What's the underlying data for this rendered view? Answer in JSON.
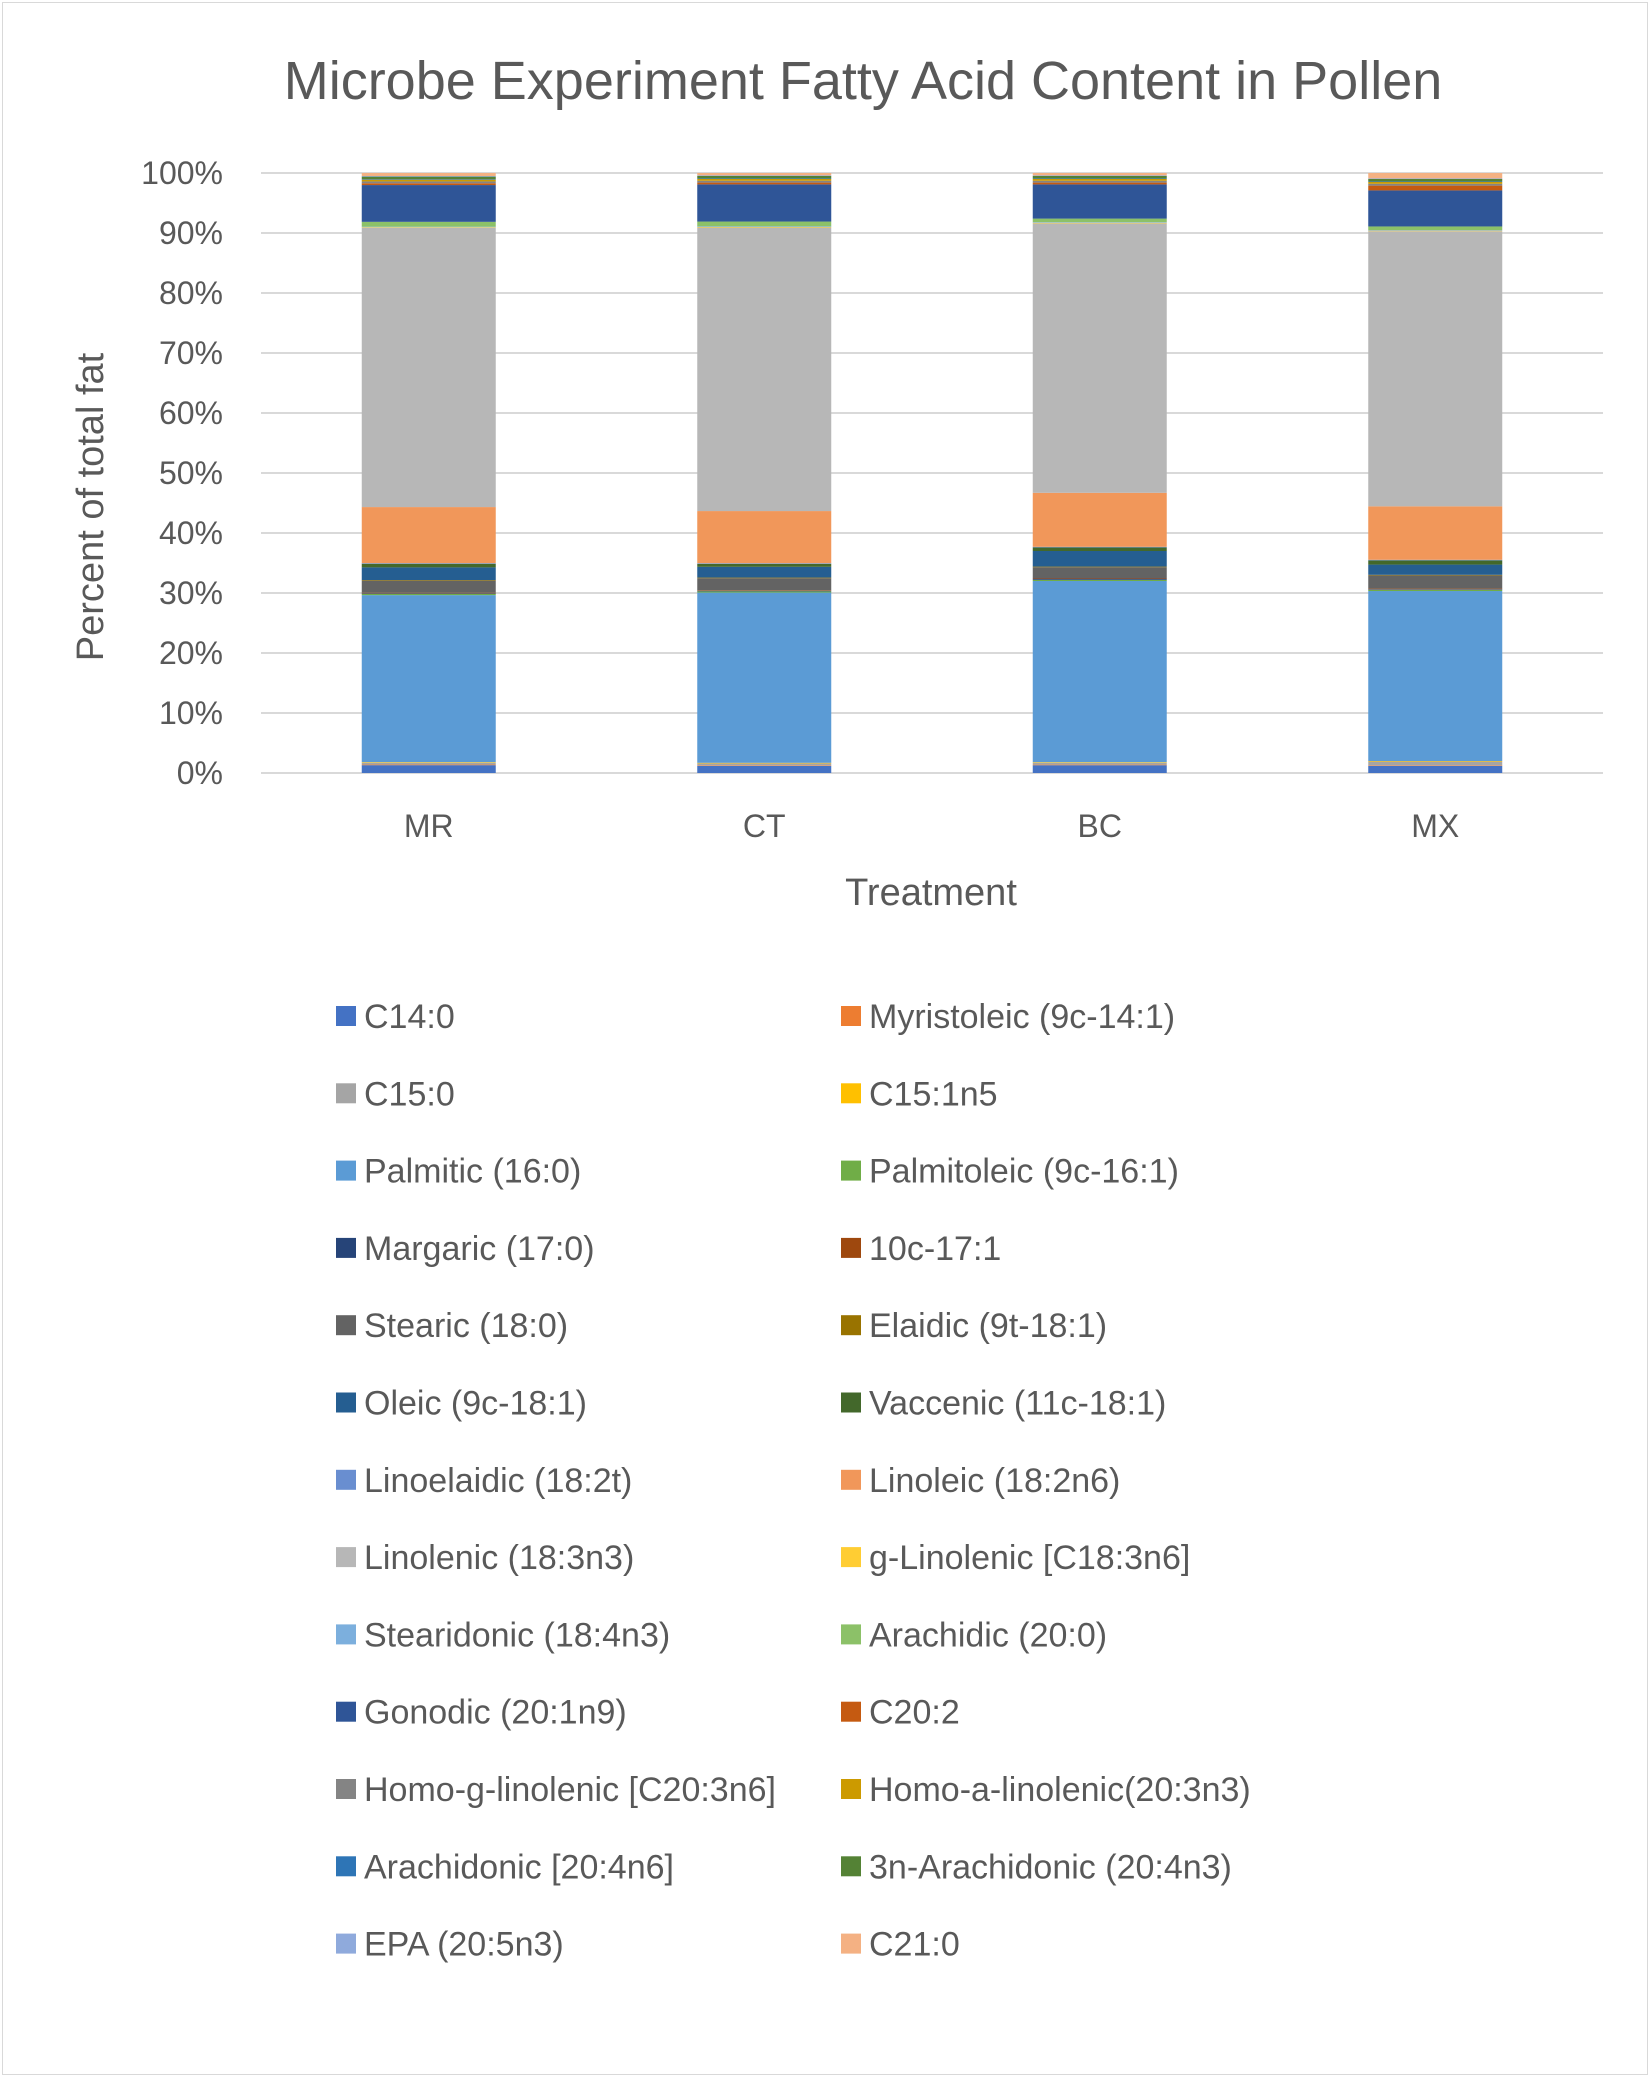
{
  "chart_data": {
    "type": "bar",
    "stacked": true,
    "percent_stacked": true,
    "title": "Microbe Experiment Fatty Acid Content in Pollen",
    "xlabel": "Treatment",
    "ylabel": "Percent of total fat",
    "categories": [
      "MR",
      "CT",
      "BC",
      "MX"
    ],
    "ylim": [
      0,
      100
    ],
    "yticks": [
      "0%",
      "10%",
      "20%",
      "30%",
      "40%",
      "50%",
      "60%",
      "70%",
      "80%",
      "90%",
      "100%"
    ],
    "grid": true,
    "legend_position": "bottom",
    "series": [
      {
        "name": "C14:0",
        "color": "#4472C4",
        "values": [
          1.3,
          1.2,
          1.3,
          1.2
        ]
      },
      {
        "name": "Myristoleic (9c-14:1)",
        "color": "#ED7D31",
        "values": [
          0.1,
          0.1,
          0.1,
          0.1
        ]
      },
      {
        "name": "C15:0",
        "color": "#A5A5A5",
        "values": [
          0.3,
          0.3,
          0.3,
          0.6
        ]
      },
      {
        "name": "C15:1n5",
        "color": "#FFC000",
        "values": [
          0.1,
          0.1,
          0.1,
          0.1
        ]
      },
      {
        "name": "Palmitic (16:0)",
        "color": "#5B9BD5",
        "values": [
          27.7,
          28.4,
          30.2,
          28.3
        ]
      },
      {
        "name": "Palmitoleic (9c-16:1)",
        "color": "#70AD47",
        "values": [
          0.2,
          0.2,
          0.2,
          0.2
        ]
      },
      {
        "name": "Margaric (17:0)",
        "color": "#264478",
        "values": [
          0.1,
          0.1,
          0.2,
          0.1
        ]
      },
      {
        "name": "10c-17:1",
        "color": "#9E480E",
        "values": [
          0.1,
          0.1,
          0.1,
          0.1
        ]
      },
      {
        "name": "Stearic (18:0)",
        "color": "#636363",
        "values": [
          2.0,
          2.0,
          1.8,
          2.2
        ]
      },
      {
        "name": "Elaidic (9t-18:1)",
        "color": "#997300",
        "values": [
          0.1,
          0.1,
          0.1,
          0.1
        ]
      },
      {
        "name": "Oleic (9c-18:1)",
        "color": "#255E91",
        "values": [
          2.1,
          1.8,
          2.6,
          1.7
        ]
      },
      {
        "name": "Vaccenic (11c-18:1)",
        "color": "#43682B",
        "values": [
          0.6,
          0.5,
          0.6,
          0.7
        ]
      },
      {
        "name": "Linoelaidic (18:2t)",
        "color": "#698ED0",
        "values": [
          0.1,
          0.1,
          0.1,
          0.1
        ]
      },
      {
        "name": "Linoleic (18:2n6)",
        "color": "#F1975A",
        "values": [
          9.3,
          8.7,
          9.0,
          8.9
        ]
      },
      {
        "name": "Linolenic (18:3n3)",
        "color": "#B7B7B7",
        "values": [
          46.3,
          47.3,
          44.9,
          45.8
        ]
      },
      {
        "name": "g-Linolenic [C18:3n6]",
        "color": "#FFCD33",
        "values": [
          0.1,
          0.1,
          0.1,
          0.1
        ]
      },
      {
        "name": "Stearidonic (18:4n3)",
        "color": "#7CAFDD",
        "values": [
          0.1,
          0.1,
          0.1,
          0.1
        ]
      },
      {
        "name": "Arachidic (20:0)",
        "color": "#8CC168",
        "values": [
          0.8,
          0.8,
          0.6,
          0.6
        ]
      },
      {
        "name": "Gonodic (20:1n9)",
        "color": "#2F5597",
        "values": [
          6.1,
          6.2,
          5.7,
          6.0
        ]
      },
      {
        "name": "C20:2",
        "color": "#C55A11",
        "values": [
          0.3,
          0.3,
          0.3,
          0.8
        ]
      },
      {
        "name": "Homo-g-linolenic [C20:3n6]",
        "color": "#848484",
        "values": [
          0.3,
          0.3,
          0.3,
          0.3
        ]
      },
      {
        "name": "Homo-a-linolenic(20:3n3)",
        "color": "#CC9A00",
        "values": [
          0.3,
          0.3,
          0.3,
          0.3
        ]
      },
      {
        "name": "Arachidonic [20:4n6]",
        "color": "#2E75B6",
        "values": [
          0.1,
          0.1,
          0.1,
          0.1
        ]
      },
      {
        "name": "3n-Arachidonic (20:4n3)",
        "color": "#548235",
        "values": [
          0.4,
          0.4,
          0.4,
          0.4
        ]
      },
      {
        "name": "EPA (20:5n3)",
        "color": "#8FAADC",
        "values": [
          0.1,
          0.1,
          0.1,
          0.1
        ]
      },
      {
        "name": "C21:0",
        "color": "#F4B183",
        "values": [
          0.5,
          0.4,
          0.4,
          0.9
        ]
      }
    ]
  }
}
